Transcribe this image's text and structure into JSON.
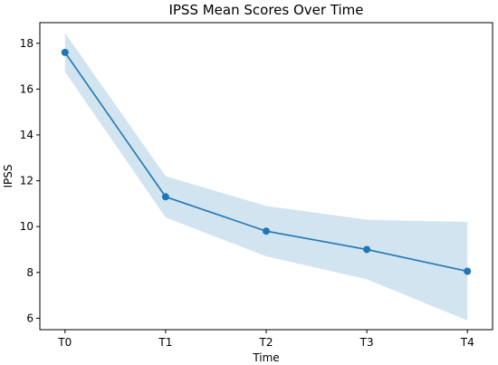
{
  "chart_data": {
    "type": "line",
    "title": "IPSS Mean Scores Over Time",
    "xlabel": "Time",
    "ylabel": "IPSS",
    "categories": [
      "T0",
      "T1",
      "T2",
      "T3",
      "T4"
    ],
    "series": [
      {
        "values": [
          17.6,
          11.3,
          9.8,
          9.0,
          8.05
        ],
        "lower": [
          16.75,
          10.4,
          8.7,
          7.7,
          5.9
        ],
        "upper": [
          18.45,
          12.2,
          10.9,
          10.3,
          10.2
        ]
      }
    ],
    "ylim": [
      5.5,
      18.9
    ],
    "yticks": [
      6,
      8,
      10,
      12,
      14,
      16,
      18
    ],
    "grid": false,
    "colors": {
      "line": "#1f77b4",
      "band": "#1f77b4",
      "axis": "#000000"
    }
  }
}
